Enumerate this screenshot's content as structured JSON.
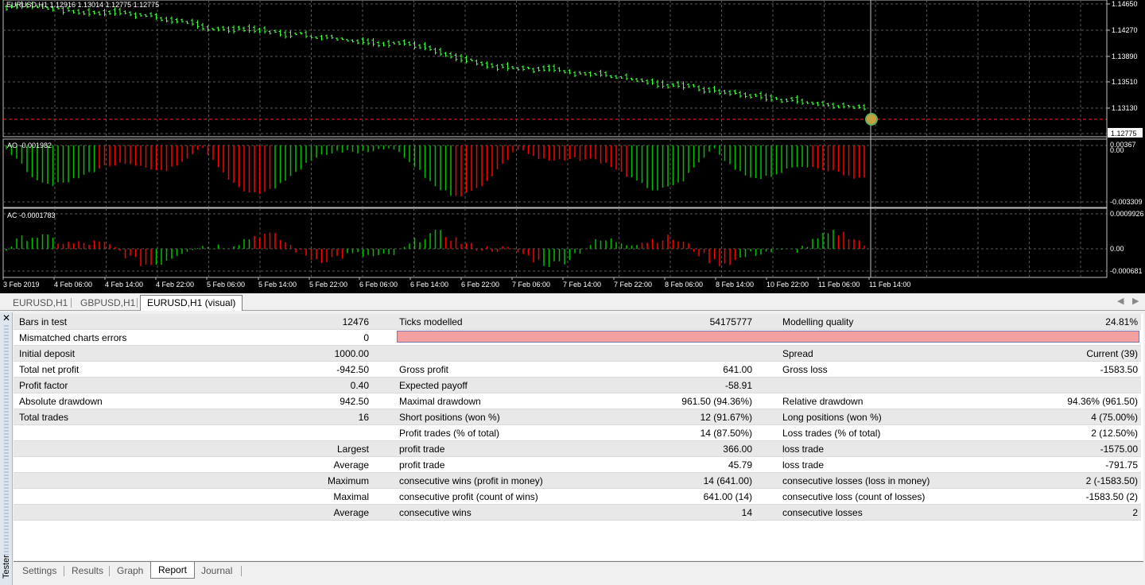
{
  "chart": {
    "main_title": "EURUSD,H1  1.12916 1.13014 1.12775 1.12775",
    "price_labels": [
      "1.14650",
      "1.14270",
      "1.13890",
      "1.13510",
      "1.13130"
    ],
    "current_price": "1.12775",
    "ao_title": "AO -0.001982",
    "ao_labels": [
      "0.00367",
      "0.00",
      "-0.003309"
    ],
    "ac_title": "AC -0.0001783",
    "ac_labels": [
      "0.0009926",
      "0.00",
      "-0.000681"
    ],
    "time_labels": [
      "3 Feb 2019",
      "4 Feb 06:00",
      "4 Feb 14:00",
      "4 Feb 22:00",
      "5 Feb 06:00",
      "5 Feb 14:00",
      "5 Feb 22:00",
      "6 Feb 06:00",
      "6 Feb 14:00",
      "6 Feb 22:00",
      "7 Feb 06:00",
      "7 Feb 14:00",
      "7 Feb 22:00",
      "8 Feb 06:00",
      "8 Feb 14:00",
      "10 Feb 22:00",
      "11 Feb 06:00",
      "11 Feb 14:00"
    ],
    "colors": {
      "bull": "#00c000",
      "bear": "#ff0000",
      "bar": "#40ff40",
      "grid": "#5a5a5a"
    }
  },
  "doc_tabs": [
    "EURUSD,H1",
    "GBPUSD,H1",
    "EURUSD,H1 (visual)"
  ],
  "tester_label": "Tester",
  "report": [
    [
      "Bars in test",
      "12476",
      "Ticks modelled",
      "54175777",
      "Modelling quality",
      "24.81%"
    ],
    [
      "Mismatched charts errors",
      "0",
      "",
      "",
      "",
      ""
    ],
    [
      "Initial deposit",
      "1000.00",
      "",
      "",
      "Spread",
      "Current (39)"
    ],
    [
      "Total net profit",
      "-942.50",
      "Gross profit",
      "641.00",
      "Gross loss",
      "-1583.50"
    ],
    [
      "Profit factor",
      "0.40",
      "Expected payoff",
      "-58.91",
      "",
      ""
    ],
    [
      "Absolute drawdown",
      "942.50",
      "Maximal drawdown",
      "961.50 (94.36%)",
      "Relative drawdown",
      "94.36% (961.50)"
    ],
    [
      "Total trades",
      "16",
      "Short positions (won %)",
      "12 (91.67%)",
      "Long positions (won %)",
      "4 (75.00%)"
    ],
    [
      "",
      "",
      "Profit trades (% of total)",
      "14 (87.50%)",
      "Loss trades (% of total)",
      "2 (12.50%)"
    ],
    [
      "",
      "Largest",
      "profit trade",
      "366.00",
      "loss trade",
      "-1575.00"
    ],
    [
      "",
      "Average",
      "profit trade",
      "45.79",
      "loss trade",
      "-791.75"
    ],
    [
      "",
      "Maximum",
      "consecutive wins (profit in money)",
      "14 (641.00)",
      "consecutive losses (loss in money)",
      "2 (-1583.50)"
    ],
    [
      "",
      "Maximal",
      "consecutive profit (count of wins)",
      "641.00 (14)",
      "consecutive loss (count of losses)",
      "-1583.50 (2)"
    ],
    [
      "",
      "Average",
      "consecutive wins",
      "14",
      "consecutive losses",
      "2"
    ]
  ],
  "modelling_quality_fraction": 0.2481,
  "bottom_tabs": [
    "Settings",
    "Results",
    "Graph",
    "Report",
    "Journal"
  ],
  "active_bottom_tab": "Report"
}
